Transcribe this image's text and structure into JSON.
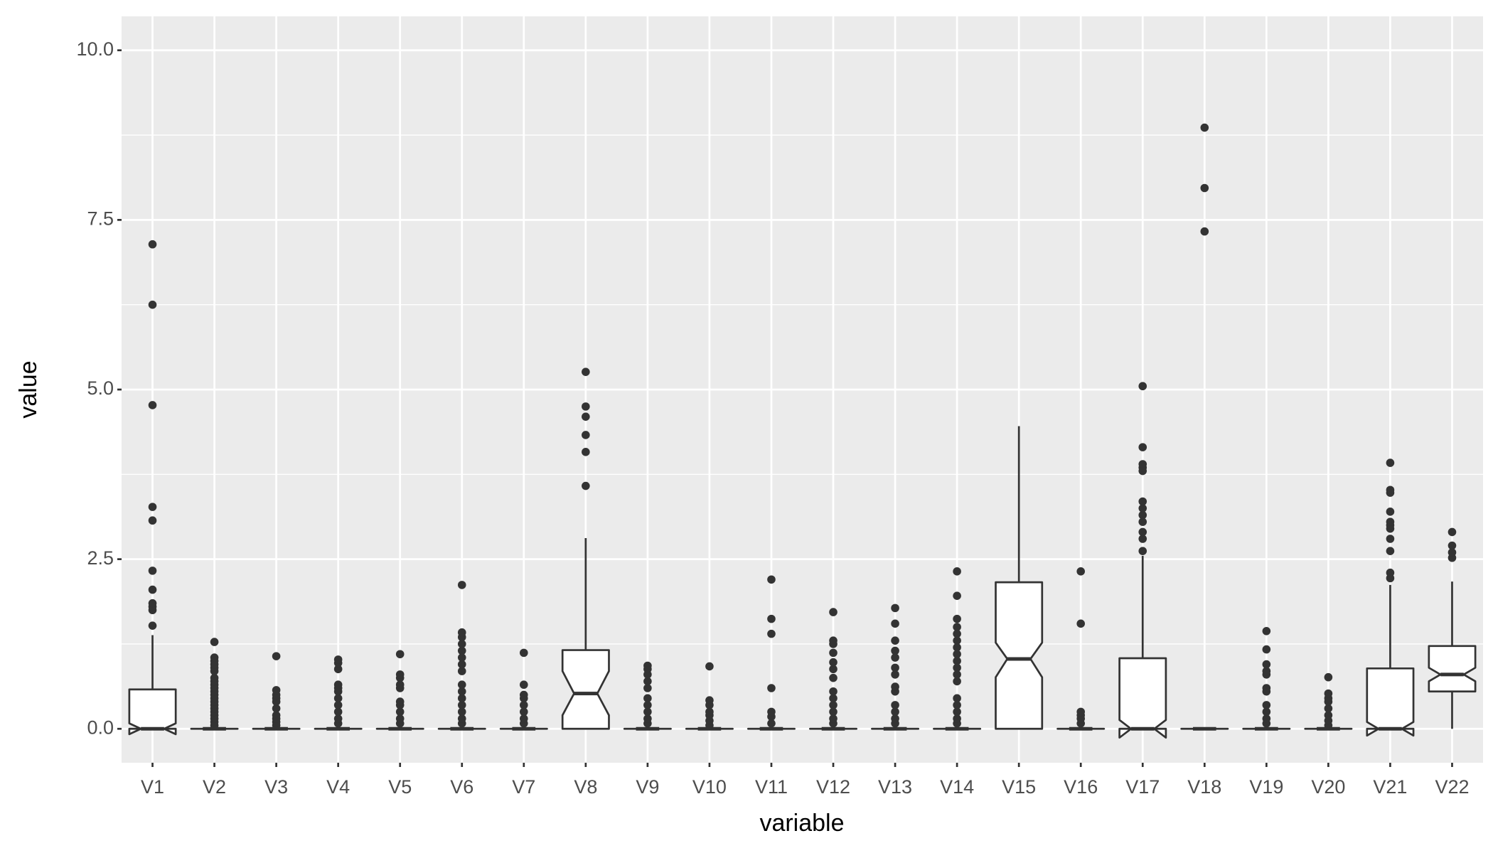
{
  "chart_data": {
    "type": "boxplot",
    "notched": true,
    "x_label": "variable",
    "y_label": "value",
    "ylim": [
      -0.5,
      10.5
    ],
    "yticks": [
      {
        "value": 0,
        "label": "0.0"
      },
      2.5,
      {
        "value": 5,
        "label": "5.0"
      },
      7.5,
      {
        "value": 10,
        "label": "10.0"
      }
    ],
    "grid": true,
    "color": "#333333",
    "fill": "#ffffff",
    "categories": [
      "V1",
      "V2",
      "V3",
      "V4",
      "V5",
      "V6",
      "V7",
      "V8",
      "V9",
      "V10",
      "V11",
      "V12",
      "V13",
      "V14",
      "V15",
      "V16",
      "V17",
      "V18",
      "V19",
      "V20",
      "V21",
      "V22"
    ],
    "boxes": [
      {
        "min": 0,
        "q1": 0,
        "median": 0,
        "q3": 0.58,
        "max": 1.38,
        "notch_low": -0.08,
        "notch_high": 0.08,
        "outliers": [
          1.52,
          1.75,
          1.8,
          1.85,
          2.05,
          2.33,
          3.07,
          3.27,
          4.77,
          6.25,
          7.14
        ]
      },
      {
        "min": 0,
        "q1": 0,
        "median": 0,
        "q3": 0,
        "max": 0,
        "notch_low": 0,
        "notch_high": 0,
        "outliers": [
          0.05,
          0.1,
          0.15,
          0.2,
          0.25,
          0.3,
          0.35,
          0.4,
          0.45,
          0.5,
          0.55,
          0.6,
          0.65,
          0.7,
          0.75,
          0.85,
          0.9,
          0.95,
          1.0,
          1.05,
          1.28
        ]
      },
      {
        "min": 0,
        "q1": 0,
        "median": 0,
        "q3": 0,
        "max": 0,
        "notch_low": 0,
        "notch_high": 0,
        "outliers": [
          0.05,
          0.1,
          0.15,
          0.2,
          0.3,
          0.4,
          0.45,
          0.5,
          0.57,
          1.07
        ]
      },
      {
        "min": 0,
        "q1": 0,
        "median": 0,
        "q3": 0,
        "max": 0,
        "notch_low": 0,
        "notch_high": 0,
        "outliers": [
          0.08,
          0.15,
          0.25,
          0.35,
          0.45,
          0.55,
          0.6,
          0.65,
          0.88,
          0.97,
          1.02
        ]
      },
      {
        "min": 0,
        "q1": 0,
        "median": 0,
        "q3": 0,
        "max": 0,
        "notch_low": 0,
        "notch_high": 0,
        "outliers": [
          0.08,
          0.15,
          0.25,
          0.35,
          0.4,
          0.6,
          0.65,
          0.75,
          0.8,
          1.1
        ]
      },
      {
        "min": 0,
        "q1": 0,
        "median": 0,
        "q3": 0,
        "max": 0,
        "notch_low": 0,
        "notch_high": 0,
        "outliers": [
          0.08,
          0.15,
          0.25,
          0.35,
          0.45,
          0.55,
          0.65,
          0.85,
          0.95,
          1.05,
          1.15,
          1.25,
          1.35,
          1.42,
          2.12
        ]
      },
      {
        "min": 0,
        "q1": 0,
        "median": 0,
        "q3": 0,
        "max": 0,
        "notch_low": 0,
        "notch_high": 0,
        "outliers": [
          0.08,
          0.15,
          0.25,
          0.35,
          0.45,
          0.5,
          0.65,
          1.12
        ]
      },
      {
        "min": 0,
        "q1": 0,
        "median": 0.52,
        "q3": 1.16,
        "max": 2.81,
        "notch_low": 0.2,
        "notch_high": 0.85,
        "outliers": [
          3.58,
          4.08,
          4.33,
          4.6,
          4.75,
          5.26
        ]
      },
      {
        "min": 0,
        "q1": 0,
        "median": 0,
        "q3": 0,
        "max": 0,
        "notch_low": 0,
        "notch_high": 0,
        "outliers": [
          0.08,
          0.15,
          0.25,
          0.35,
          0.45,
          0.6,
          0.7,
          0.8,
          0.88,
          0.93
        ]
      },
      {
        "min": 0,
        "q1": 0,
        "median": 0,
        "q3": 0,
        "max": 0,
        "notch_low": 0,
        "notch_high": 0,
        "outliers": [
          0.05,
          0.12,
          0.2,
          0.25,
          0.35,
          0.42,
          0.92
        ]
      },
      {
        "min": 0,
        "q1": 0,
        "median": 0,
        "q3": 0,
        "max": 0,
        "notch_low": 0,
        "notch_high": 0,
        "outliers": [
          0.08,
          0.18,
          0.25,
          0.6,
          1.4,
          1.62,
          2.2
        ]
      },
      {
        "min": 0,
        "q1": 0,
        "median": 0,
        "q3": 0,
        "max": 0,
        "notch_low": 0,
        "notch_high": 0,
        "outliers": [
          0.08,
          0.15,
          0.25,
          0.35,
          0.45,
          0.55,
          0.75,
          0.88,
          0.98,
          1.12,
          1.25,
          1.3,
          1.72
        ]
      },
      {
        "min": 0,
        "q1": 0,
        "median": 0,
        "q3": 0,
        "max": 0,
        "notch_low": 0,
        "notch_high": 0,
        "outliers": [
          0.08,
          0.15,
          0.25,
          0.35,
          0.55,
          0.62,
          0.8,
          0.9,
          1.05,
          1.15,
          1.3,
          1.55,
          1.78
        ]
      },
      {
        "min": 0,
        "q1": 0,
        "median": 0,
        "q3": 0,
        "max": 0,
        "notch_low": 0,
        "notch_high": 0,
        "outliers": [
          0.08,
          0.15,
          0.25,
          0.35,
          0.45,
          0.7,
          0.8,
          0.9,
          1.0,
          1.1,
          1.2,
          1.3,
          1.4,
          1.5,
          1.62,
          1.96,
          2.32
        ]
      },
      {
        "min": 0,
        "q1": 0,
        "median": 1.03,
        "q3": 2.16,
        "max": 4.46,
        "notch_low": 0.76,
        "notch_high": 1.27,
        "outliers": []
      },
      {
        "min": 0,
        "q1": 0,
        "median": 0,
        "q3": 0,
        "max": 0,
        "notch_low": 0,
        "notch_high": 0,
        "outliers": [
          0.08,
          0.15,
          0.2,
          0.25,
          1.55,
          2.32
        ]
      },
      {
        "min": 0,
        "q1": 0,
        "median": 0,
        "q3": 1.04,
        "max": 2.55,
        "notch_low": -0.13,
        "notch_high": 0.13,
        "outliers": [
          2.62,
          2.8,
          2.9,
          3.05,
          3.15,
          3.25,
          3.35,
          3.8,
          3.85,
          3.9,
          4.15,
          5.05
        ]
      },
      {
        "min": 0,
        "q1": 0,
        "median": 0,
        "q3": 0,
        "max": 0,
        "notch_low": 0,
        "notch_high": 0,
        "outliers": [
          7.33,
          7.97,
          8.86
        ]
      },
      {
        "min": 0,
        "q1": 0,
        "median": 0,
        "q3": 0,
        "max": 0,
        "notch_low": 0,
        "notch_high": 0,
        "outliers": [
          0.08,
          0.15,
          0.25,
          0.35,
          0.55,
          0.6,
          0.8,
          0.85,
          0.95,
          1.17,
          1.44
        ]
      },
      {
        "min": 0,
        "q1": 0,
        "median": 0,
        "q3": 0,
        "max": 0,
        "notch_low": 0,
        "notch_high": 0,
        "outliers": [
          0.05,
          0.12,
          0.2,
          0.3,
          0.4,
          0.45,
          0.52,
          0.76
        ]
      },
      {
        "min": 0,
        "q1": 0,
        "median": 0,
        "q3": 0.89,
        "max": 2.12,
        "notch_low": -0.1,
        "notch_high": 0.1,
        "outliers": [
          2.22,
          2.3,
          2.62,
          2.8,
          2.95,
          3.0,
          3.05,
          3.2,
          3.48,
          3.52,
          3.92
        ]
      },
      {
        "min": 0,
        "q1": 0.55,
        "median": 0.8,
        "q3": 1.22,
        "max": 2.17,
        "notch_low": 0.7,
        "notch_high": 0.9,
        "outliers": [
          2.52,
          2.6,
          2.7,
          2.9
        ]
      }
    ]
  }
}
